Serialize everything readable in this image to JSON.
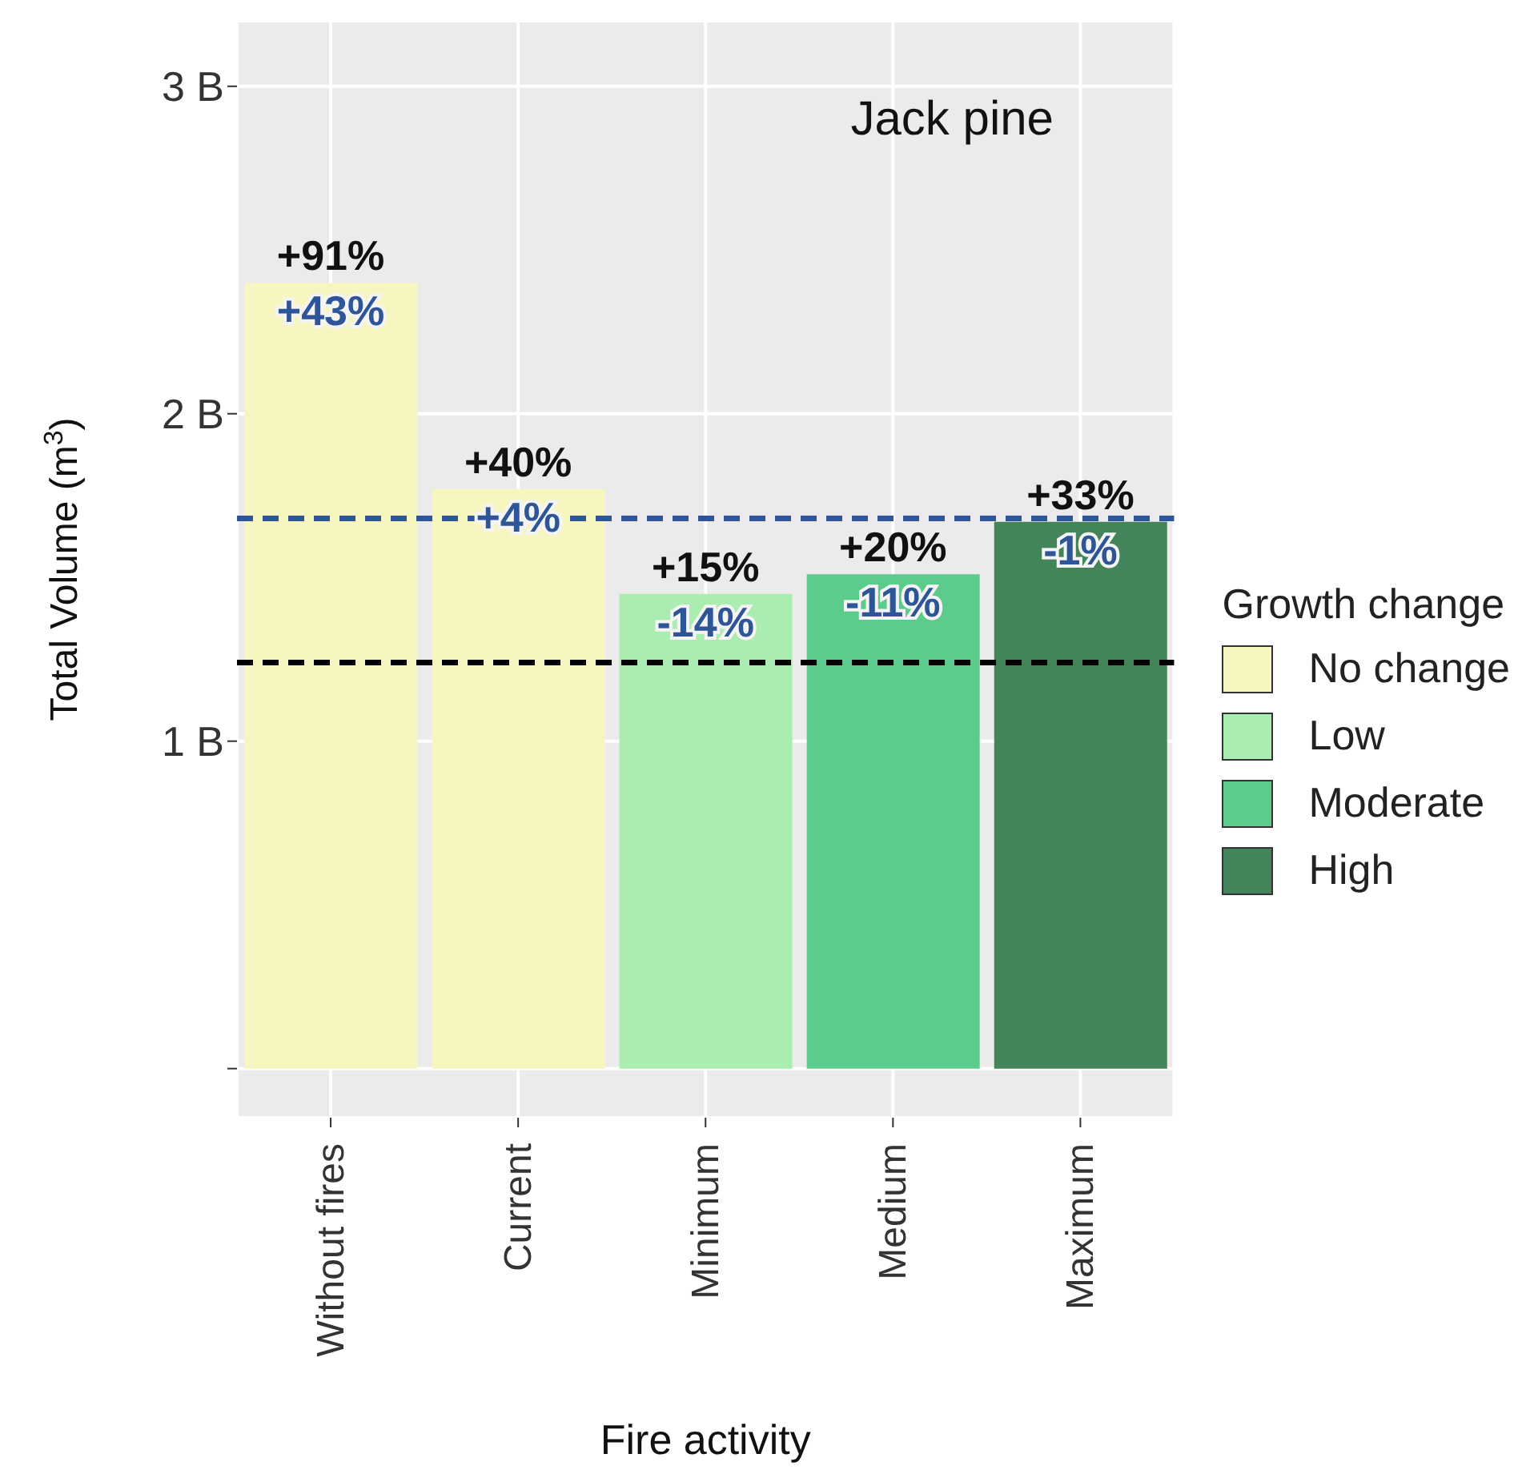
{
  "chart_data": {
    "type": "bar",
    "xlabel": "Fire activity",
    "ylabel": "Total Volume (m$^{3}$)",
    "legend_title": "Growth change",
    "categories": [
      "Without fires",
      "Current",
      "Minimum",
      "Medium",
      "Maximum"
    ],
    "stacked": true,
    "series": [
      {
        "name": "No change",
        "color": "#f8f6c0",
        "values": [
          2.4,
          1.77,
          null,
          null,
          null
        ]
      },
      {
        "name": "Low",
        "color": "#abedb1",
        "values": [
          null,
          null,
          1.45,
          null,
          null
        ]
      },
      {
        "name": "Moderate",
        "color": "#5ccc8c",
        "values": [
          null,
          null,
          null,
          1.51,
          null
        ]
      },
      {
        "name": "High",
        "color": "#44845a",
        "values": [
          null,
          null,
          null,
          null,
          1.67
        ]
      }
    ],
    "ylim": [
      -0.15,
      3.2
    ],
    "yticks": [
      {
        "value": 0,
        "label": null
      },
      {
        "value": 1,
        "label": "1 B"
      },
      {
        "value": 2,
        "label": "2 B"
      },
      {
        "value": 3,
        "label": "3 B"
      }
    ],
    "grid": true,
    "legend": "right",
    "ref_lines": [
      {
        "axis": "y",
        "value": 1.68,
        "color": "#2e5597",
        "line_style": "dashed"
      },
      {
        "axis": "y",
        "value": 1.24,
        "color": "#000000",
        "line_style": "dashed"
      }
    ],
    "annotations": [
      "Jack pine",
      {
        "text": "+91%",
        "x": "Without fires",
        "y": 2.4
      },
      {
        "text": "+40%",
        "x": "Current",
        "y": 1.77
      },
      {
        "text": "+15%",
        "x": "Minimum",
        "y": 1.45
      },
      {
        "text": "+20%",
        "x": "Medium",
        "y": 1.51
      },
      {
        "text": "+33%",
        "x": "Maximum",
        "y": 1.67
      },
      {
        "text": "+43%",
        "x": "Without fires",
        "y": 2.4
      },
      {
        "text": "+4%",
        "x": "Current",
        "y": 1.77
      },
      {
        "text": "-14%",
        "x": "Minimum",
        "y": 1.45
      },
      {
        "text": "-11%",
        "x": "Medium",
        "y": 1.51
      },
      {
        "text": "-1%",
        "x": "Maximum",
        "y": 1.67
      }
    ]
  }
}
